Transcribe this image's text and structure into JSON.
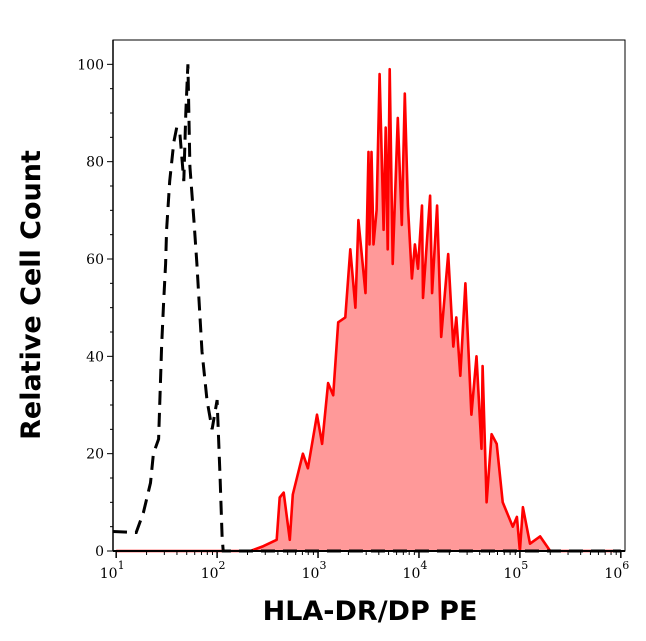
{
  "chart_data": {
    "type": "area",
    "title": "",
    "xlabel": "HLA-DR/DP PE",
    "ylabel": "Relative Cell Count",
    "x_scale": "log",
    "xlim": [
      9.3,
      1100000
    ],
    "ylim": [
      0,
      105
    ],
    "x_ticks": [
      {
        "base": "10",
        "exp": "1",
        "value": 10
      },
      {
        "base": "10",
        "exp": "2",
        "value": 100
      },
      {
        "base": "10",
        "exp": "3",
        "value": 1000
      },
      {
        "base": "10",
        "exp": "4",
        "value": 10000
      },
      {
        "base": "10",
        "exp": "5",
        "value": 100000
      },
      {
        "base": "10",
        "exp": "6",
        "value": 1000000
      }
    ],
    "y_ticks": [
      "0",
      "20",
      "40",
      "60",
      "80",
      "100"
    ],
    "grid": false,
    "series": [
      {
        "style": "filled",
        "line_color": "#ff0000",
        "fill_color": "#ff9999",
        "x": [
          10,
          214,
          288,
          389,
          417,
          457,
          525,
          562,
          708,
          794,
          977,
          1096,
          1259,
          1413,
          1585,
          1862,
          2089,
          2344,
          2512,
          2951,
          3162,
          3236,
          3388,
          3548,
          3802,
          4074,
          4467,
          4677,
          4898,
          5129,
          5495,
          6166,
          6761,
          7244,
          7762,
          8511,
          9120,
          9772,
          10715,
          10965,
          12882,
          13490,
          15136,
          16596,
          19498,
          21878,
          23442,
          25704,
          28840,
          33113,
          37154,
          41687,
          42658,
          46774,
          52481,
          58884,
          67608,
          85114,
          93325,
          100000,
          107152,
          125893,
          158489,
          199526,
          1000000
        ],
        "y": [
          0,
          0,
          1,
          2.3,
          11,
          12,
          2.3,
          11.6,
          20,
          17,
          28,
          22,
          34.5,
          32,
          47,
          48,
          62,
          50,
          68,
          53,
          82,
          63,
          82,
          63,
          70,
          98,
          66,
          87,
          62,
          99,
          59,
          89,
          67,
          94,
          71,
          56,
          63,
          58,
          71,
          52,
          73,
          53,
          71,
          44,
          61,
          42,
          48,
          36,
          55,
          28,
          40,
          21,
          38,
          10,
          24,
          22,
          10,
          5,
          7,
          0,
          9,
          1.5,
          3,
          0,
          0
        ]
      },
      {
        "style": "dashed",
        "line_color": "#000000",
        "x": [
          9.3,
          15.8,
          18.6,
          21.9,
          23.4,
          26.3,
          27.5,
          28.2,
          29.5,
          30.9,
          31.6,
          33.9,
          37.2,
          39.8,
          42.7,
          46.8,
          49.0,
          51.3,
          53.7,
          58.9,
          63.1,
          70.8,
          79.4,
          89.1,
          100,
          107,
          112,
          115,
          1000000
        ],
        "y": [
          4,
          3.8,
          7.9,
          14,
          20,
          23,
          35,
          42,
          51,
          59,
          66,
          76,
          84,
          87,
          86,
          76,
          90,
          100,
          79,
          68,
          59,
          41,
          31,
          25,
          31,
          15,
          3,
          0,
          0
        ]
      }
    ]
  }
}
